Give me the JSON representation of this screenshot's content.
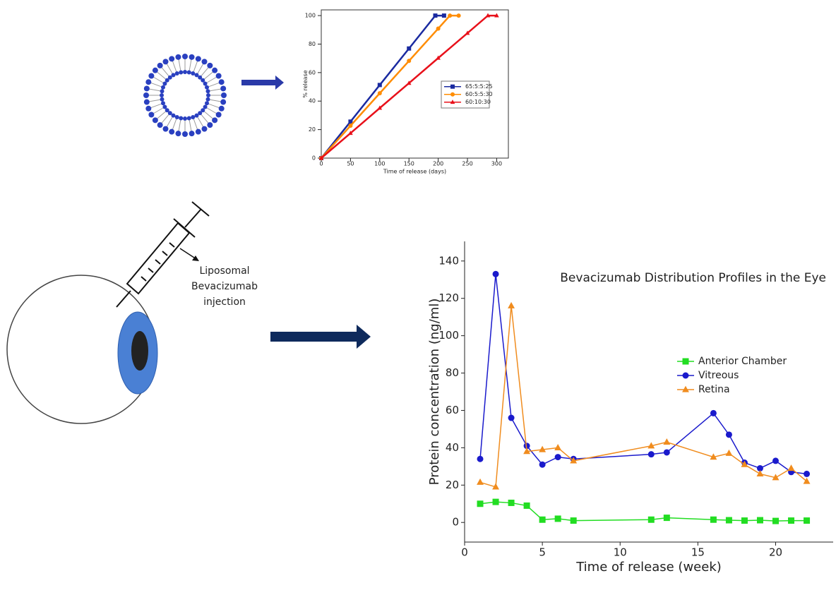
{
  "diagram": {
    "label_lines": [
      "Liposomal",
      "Bevacizumab",
      "injection"
    ]
  },
  "chart_data": [
    {
      "type": "line",
      "xlabel": "Time of release (days)",
      "ylabel": "% release",
      "xlim": [
        0,
        320
      ],
      "ylim": [
        0,
        104
      ],
      "xticks": [
        0,
        50,
        100,
        150,
        200,
        250,
        300
      ],
      "yticks": [
        0,
        20,
        40,
        60,
        80,
        100
      ],
      "legend": "right",
      "series": [
        {
          "name": "65:5:5:25",
          "color": "#1a2aa0",
          "marker": "square",
          "x": [
            0,
            50,
            100,
            150,
            195,
            210
          ],
          "values": [
            0,
            25.6,
            51.3,
            76.9,
            100,
            100
          ]
        },
        {
          "name": "60:5:5:30",
          "color": "#ff8c00",
          "marker": "circle",
          "x": [
            0,
            50,
            100,
            150,
            200,
            220,
            235
          ],
          "values": [
            0,
            22.7,
            45.5,
            68.2,
            90.9,
            100,
            100
          ]
        },
        {
          "name": "60:10:30",
          "color": "#e8101a",
          "marker": "triangle",
          "x": [
            0,
            50,
            100,
            150,
            200,
            250,
            285,
            300
          ],
          "values": [
            0,
            17.5,
            35.1,
            52.6,
            70.2,
            87.7,
            100,
            100
          ]
        }
      ]
    },
    {
      "type": "line",
      "title": "Bevacizumab Distribution Profiles in the Eye",
      "xlabel": "Time of release (week)",
      "ylabel": "Protein concentration (ng/ml)",
      "xlim": [
        0,
        23.7
      ],
      "ylim": [
        -10.5,
        150.5
      ],
      "xticks": [
        0,
        5,
        10,
        15,
        20
      ],
      "yticks": [
        0,
        20,
        40,
        60,
        80,
        100,
        120,
        140
      ],
      "legend": "right",
      "series": [
        {
          "name": "Anterior Chamber",
          "color": "#22dd22",
          "marker": "square",
          "x": [
            1,
            2,
            3,
            4,
            5,
            6,
            7,
            12,
            13,
            16,
            17,
            18,
            19,
            20,
            21,
            22
          ],
          "values": [
            10,
            11,
            10.5,
            9,
            1.5,
            2,
            1,
            1.5,
            2.5,
            1.5,
            1.2,
            1,
            1.2,
            0.8,
            1,
            1
          ]
        },
        {
          "name": "Vitreous",
          "color": "#1a1acc",
          "marker": "circle",
          "x": [
            1,
            2,
            3,
            4,
            5,
            6,
            7,
            12,
            13,
            16,
            17,
            18,
            19,
            20,
            21,
            22
          ],
          "values": [
            34,
            133,
            56,
            41,
            31,
            35,
            34,
            36.5,
            37.5,
            58.5,
            47,
            32,
            29,
            33,
            27,
            26
          ]
        },
        {
          "name": "Retina",
          "color": "#f08c1e",
          "marker": "triangle",
          "x": [
            1,
            2,
            3,
            4,
            5,
            6,
            7,
            12,
            13,
            16,
            17,
            18,
            19,
            20,
            21,
            22
          ],
          "values": [
            21.5,
            19,
            116,
            38,
            39,
            40,
            33,
            41,
            43,
            35,
            37,
            31,
            26,
            24,
            29,
            22
          ]
        }
      ]
    }
  ]
}
